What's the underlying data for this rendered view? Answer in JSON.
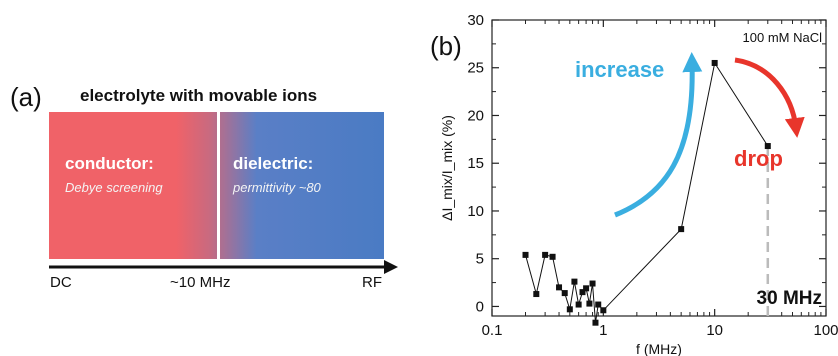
{
  "panel_a": {
    "label": "(a)",
    "title": "electrolyte with movable ions",
    "conductor": {
      "heading": "conductor:",
      "detail": "Debye screening"
    },
    "dielectric": {
      "heading": "dielectric:",
      "detail": "permittivity ~80"
    },
    "axis": {
      "left": "DC",
      "middle": "~10 MHz",
      "right": "RF"
    },
    "colors": {
      "conductor": "#f06268",
      "dielectric": "#4a7bc4"
    }
  },
  "chart_data": {
    "type": "line",
    "panel_label": "(b)",
    "annotation": "100 mM NaCl",
    "xlabel": "f (MHz)",
    "ylabel": "ΔI_mix/I_mix (%)",
    "xscale": "log",
    "xlim": [
      0.1,
      100
    ],
    "ylim": [
      -1,
      30
    ],
    "xticks": [
      0.1,
      1,
      10,
      100
    ],
    "xtick_labels": [
      "0.1",
      "1",
      "10",
      "100"
    ],
    "yticks": [
      0,
      5,
      10,
      15,
      20,
      25,
      30
    ],
    "ytick_labels": [
      "0",
      "5",
      "10",
      "15",
      "20",
      "25",
      "30"
    ],
    "series": [
      {
        "x": [
          0.2,
          0.25,
          0.3,
          0.35,
          0.4,
          0.45,
          0.5,
          0.55,
          0.6,
          0.65,
          0.7,
          0.75,
          0.8,
          0.85,
          0.9,
          1.0,
          5,
          10,
          30
        ],
        "y": [
          5.4,
          1.3,
          5.4,
          5.2,
          2.0,
          1.4,
          -0.3,
          2.6,
          0.2,
          1.5,
          1.9,
          0.3,
          2.4,
          -1.7,
          0.2,
          -0.4,
          8.1,
          25.5,
          16.8
        ],
        "color": "#111111"
      }
    ],
    "arrows": [
      {
        "label": "increase",
        "color": "#3aaee0"
      },
      {
        "label": "drop",
        "color": "#e8352b"
      }
    ],
    "marker_line": {
      "x": 30,
      "label": "30 MHz",
      "color": "#bbbbbb"
    },
    "grid": false
  }
}
